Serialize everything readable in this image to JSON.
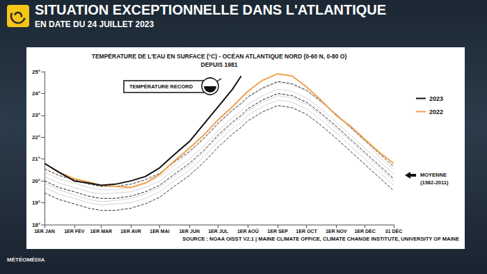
{
  "header": {
    "title": "SITUATION EXCEPTIONNELLE DANS L'ATLANTIQUE",
    "subtitle": "EN DATE DU 24 JUILLET 2023"
  },
  "footer": "MÉTÉOMÉDIA",
  "chart_data": {
    "type": "line",
    "title": "TEMPÉRATURE DE L'EAU EN SURFACE (°C) - OCÉAN ATLANTIQUE NORD (0-60 N, 0-80 O)",
    "subtitle": "DEPUIS 1981",
    "source": "SOURCE : NOAA OISST V2.1 | MAINE CLIMATE OFFICE, CLIMATE CHANGE INSTITUTE, UNIVERSITY OF MAINE",
    "annotations": [
      "TEMPÉRATURE RECORD",
      "MOYENNE (1982-2011)"
    ],
    "x": [
      0,
      15,
      31,
      46,
      59,
      74,
      90,
      105,
      120,
      135,
      151,
      166,
      181,
      196,
      205,
      212,
      227,
      243,
      258,
      273,
      288,
      304,
      319,
      334,
      349,
      364
    ],
    "xlim": [
      0,
      364
    ],
    "xticks": [
      {
        "value": 0,
        "label": "1ER JAN"
      },
      {
        "value": 31,
        "label": "1ER FÉV"
      },
      {
        "value": 59,
        "label": "1ER MAR"
      },
      {
        "value": 90,
        "label": "1ER AVR"
      },
      {
        "value": 120,
        "label": "1ER MAI"
      },
      {
        "value": 151,
        "label": "1ER JUN"
      },
      {
        "value": 181,
        "label": "1ER JUL"
      },
      {
        "value": 212,
        "label": "1ER AOÛ"
      },
      {
        "value": 243,
        "label": "1ER SEP"
      },
      {
        "value": 273,
        "label": "1ER OCT"
      },
      {
        "value": 304,
        "label": "1ER NOV"
      },
      {
        "value": 334,
        "label": "1ER DÉC"
      },
      {
        "value": 364,
        "label": "31 DÉC"
      }
    ],
    "ylim": [
      18,
      25
    ],
    "yticks": [
      {
        "value": 18,
        "label": "18°"
      },
      {
        "value": 19,
        "label": "19°"
      },
      {
        "value": 20,
        "label": "20°"
      },
      {
        "value": 21,
        "label": "21°"
      },
      {
        "value": 22,
        "label": "22°"
      },
      {
        "value": 23,
        "label": "23°"
      },
      {
        "value": 24,
        "label": "24°"
      },
      {
        "value": 25,
        "label": "25°"
      }
    ],
    "grid": false,
    "legend": "right",
    "series": [
      {
        "color": "#c8c8c8",
        "line_style": "solid",
        "values": [
          19.7,
          19.4,
          19.2,
          19.0,
          18.9,
          18.95,
          19.0,
          19.2,
          19.5,
          20.0,
          20.5,
          21.1,
          21.8,
          22.4,
          22.7,
          23.0,
          23.4,
          23.7,
          23.6,
          23.3,
          22.8,
          22.2,
          21.6,
          21.0,
          20.4,
          19.8
        ]
      },
      {
        "color": "#c8c8c8",
        "line_style": "solid",
        "values": [
          20.2,
          19.9,
          19.7,
          19.5,
          19.4,
          19.45,
          19.5,
          19.7,
          20.0,
          20.5,
          21.0,
          21.6,
          22.3,
          22.9,
          23.2,
          23.5,
          23.9,
          24.2,
          24.1,
          23.8,
          23.3,
          22.7,
          22.1,
          21.5,
          20.9,
          20.3
        ]
      },
      {
        "color": "#c8c8c8",
        "line_style": "solid",
        "values": [
          20.4,
          20.1,
          19.9,
          19.7,
          19.6,
          19.6,
          19.7,
          19.9,
          20.2,
          20.7,
          21.3,
          21.9,
          22.6,
          23.2,
          23.5,
          23.8,
          24.2,
          24.5,
          24.4,
          24.1,
          23.6,
          23.0,
          22.4,
          21.8,
          21.1,
          20.5
        ]
      },
      {
        "color": "#c8c8c8",
        "line_style": "solid",
        "values": [
          19.9,
          19.6,
          19.35,
          19.15,
          19.05,
          19.1,
          19.2,
          19.4,
          19.7,
          20.2,
          20.7,
          21.3,
          22.0,
          22.6,
          22.9,
          23.2,
          23.6,
          23.9,
          23.8,
          23.5,
          23.0,
          22.4,
          21.8,
          21.2,
          20.6,
          20.0
        ]
      },
      {
        "color": "#333333",
        "line_style": "dashed",
        "values": [
          20.55,
          20.25,
          20.05,
          19.85,
          19.75,
          19.75,
          19.85,
          20.05,
          20.35,
          20.85,
          21.35,
          21.95,
          22.65,
          23.25,
          23.55,
          23.85,
          24.25,
          24.55,
          24.45,
          24.15,
          23.65,
          23.05,
          22.45,
          21.85,
          21.25,
          20.65
        ]
      },
      {
        "color": "#333333",
        "line_style": "dashed",
        "values": [
          19.45,
          19.15,
          18.95,
          18.75,
          18.65,
          18.65,
          18.75,
          18.95,
          19.25,
          19.75,
          20.25,
          20.85,
          21.55,
          22.15,
          22.45,
          22.75,
          23.15,
          23.45,
          23.35,
          23.05,
          22.55,
          21.95,
          21.35,
          20.75,
          20.15,
          19.55
        ]
      },
      {
        "color": "#222222",
        "line_style": "dashed",
        "values": [
          20.0,
          19.7,
          19.5,
          19.3,
          19.2,
          19.2,
          19.3,
          19.5,
          19.8,
          20.3,
          20.8,
          21.4,
          22.1,
          22.7,
          23.0,
          23.3,
          23.7,
          24.0,
          23.9,
          23.6,
          23.1,
          22.5,
          21.9,
          21.3,
          20.7,
          20.1
        ]
      },
      {
        "name": "2022",
        "color": "#f0a04b",
        "line_style": "solid",
        "values": [
          20.8,
          20.4,
          20.1,
          19.95,
          19.8,
          19.75,
          19.7,
          19.9,
          20.3,
          20.9,
          21.5,
          22.1,
          22.8,
          23.4,
          23.8,
          24.1,
          24.6,
          24.9,
          24.8,
          24.3,
          23.7,
          23.0,
          22.5,
          21.9,
          21.3,
          20.8
        ]
      },
      {
        "name": "2023",
        "color": "#111111",
        "line_style": "solid",
        "values": [
          20.8,
          20.4,
          20.0,
          19.9,
          19.8,
          19.85,
          20.0,
          20.2,
          20.6,
          21.2,
          21.8,
          22.6,
          23.4,
          24.2,
          24.8,
          null,
          null,
          null,
          null,
          null,
          null,
          null,
          null,
          null,
          null,
          null
        ]
      }
    ]
  }
}
